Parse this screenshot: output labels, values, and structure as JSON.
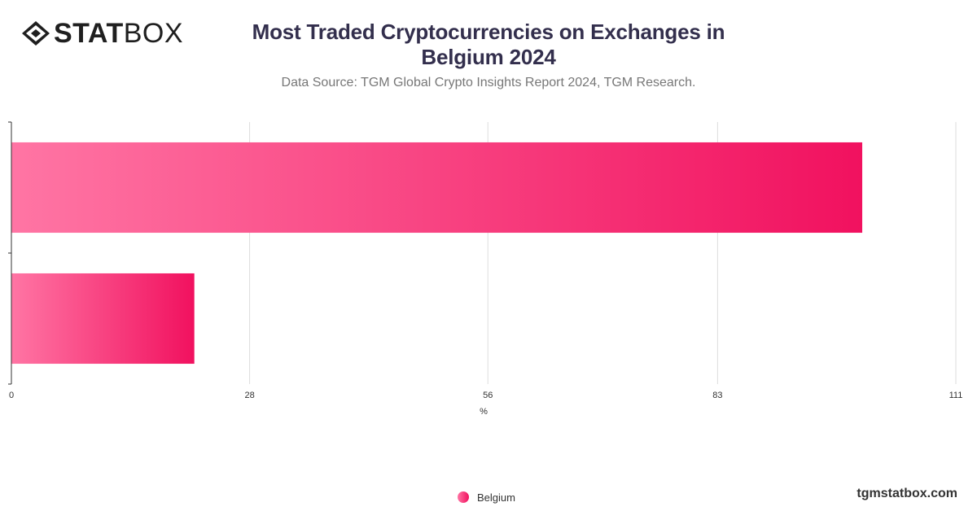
{
  "brand": {
    "logo_icon": "statbox-logo-icon",
    "logo_text_bold": "STAT",
    "logo_text_light": "BOX",
    "website": "tgmstatbox.com"
  },
  "header": {
    "title": "Most Traded Cryptocurrencies on Exchanges in Belgium 2024",
    "subtitle": "Data Source: TGM Global Crypto Insights Report 2024, TGM Research."
  },
  "legend": {
    "items": [
      {
        "label": "Belgium",
        "icon": "circle-icon"
      }
    ]
  },
  "colors": {
    "bar_start": "#ff75a4",
    "bar_end": "#f1115f",
    "grid": "#dddddd",
    "axis": "#333333",
    "text": "#333333"
  },
  "chart_data": {
    "type": "bar",
    "orientation": "horizontal",
    "categories": [
      "",
      ""
    ],
    "series": [
      {
        "name": "Belgium",
        "values": [
          100,
          21.5
        ]
      }
    ],
    "title": "Most Traded Cryptocurrencies on Exchanges in Belgium 2024",
    "subtitle": "Data Source: TGM Global Crypto Insights Report 2024, TGM Research.",
    "xlabel": "%",
    "ylabel": "",
    "xlim": [
      0,
      111
    ],
    "xticks": [
      0,
      28,
      56,
      83,
      111
    ],
    "grid": true,
    "legend_position": "bottom"
  }
}
